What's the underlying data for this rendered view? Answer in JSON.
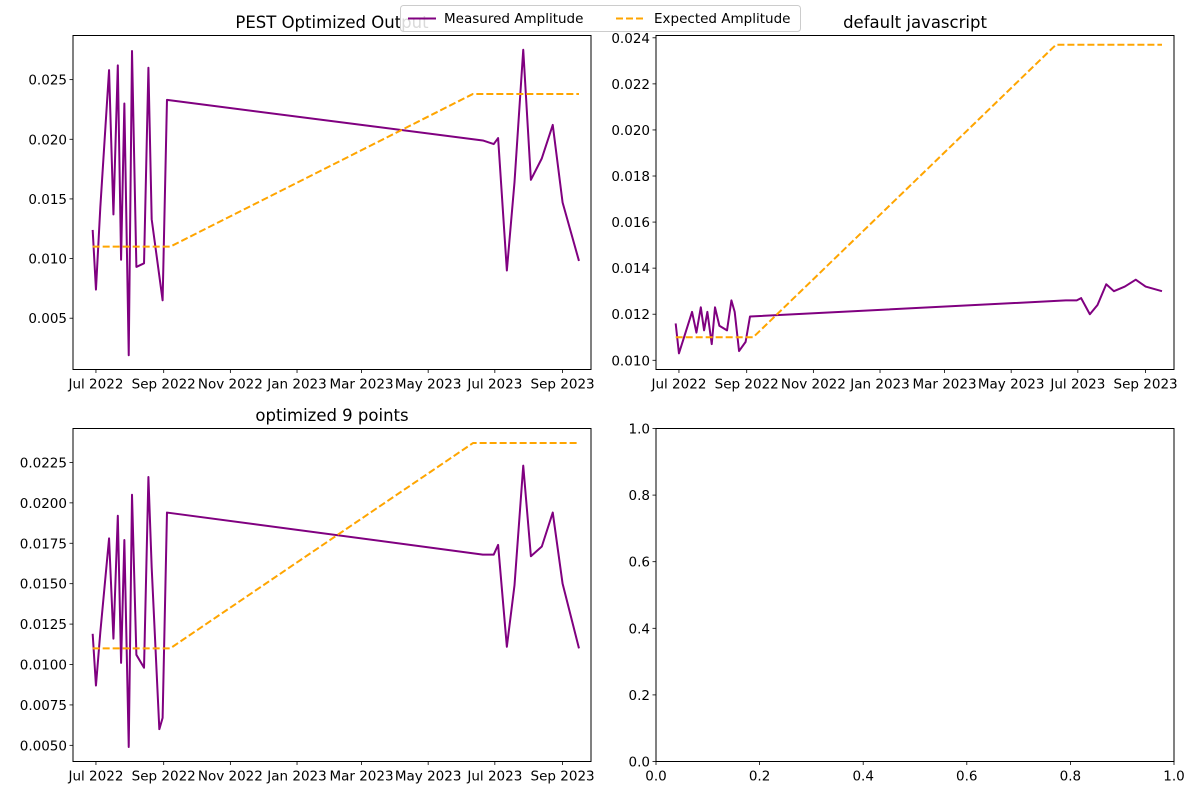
{
  "legend": {
    "entries": [
      {
        "label": "Measured Amplitude",
        "color": "#800080",
        "style": "solid"
      },
      {
        "label": "Expected Amplitude",
        "color": "#FFA500",
        "style": "dashed"
      }
    ],
    "placement": "top-center"
  },
  "x_tick_labels": [
    "Jul 2022",
    "Sep 2022",
    "Nov 2022",
    "Jan 2023",
    "Mar 2023",
    "May 2023",
    "Jul 2023",
    "Sep 2023"
  ],
  "chart_data": [
    {
      "type": "line",
      "title": "PEST Optimized Output",
      "xlabel": "",
      "ylabel": "",
      "x_axis": "date",
      "xlim": [
        "2022-06-10",
        "2023-09-27"
      ],
      "ylim": [
        0.0007,
        0.0287
      ],
      "yticks": [
        0.005,
        0.01,
        0.015,
        0.02,
        0.025
      ],
      "ytick_labels": [
        "0.005",
        "0.010",
        "0.015",
        "0.020",
        "0.025"
      ],
      "grid": false,
      "series": [
        {
          "name": "Measured Amplitude",
          "color": "#800080",
          "style": "solid",
          "points": [
            [
              "2022-06-28",
              0.0124
            ],
            [
              "2022-07-01",
              0.0074
            ],
            [
              "2022-07-05",
              0.0143
            ],
            [
              "2022-07-13",
              0.0258
            ],
            [
              "2022-07-17",
              0.0137
            ],
            [
              "2022-07-21",
              0.0262
            ],
            [
              "2022-07-24",
              0.0099
            ],
            [
              "2022-07-27",
              0.023
            ],
            [
              "2022-07-31",
              0.0019
            ],
            [
              "2022-08-03",
              0.0274
            ],
            [
              "2022-08-07",
              0.0093
            ],
            [
              "2022-08-14",
              0.0096
            ],
            [
              "2022-08-18",
              0.026
            ],
            [
              "2022-08-21",
              0.0133
            ],
            [
              "2022-08-31",
              0.0065
            ],
            [
              "2022-09-04",
              0.0233
            ],
            [
              "2023-06-20",
              0.0199
            ],
            [
              "2023-06-30",
              0.0196
            ],
            [
              "2023-07-04",
              0.0201
            ],
            [
              "2023-07-12",
              0.009
            ],
            [
              "2023-07-19",
              0.0164
            ],
            [
              "2023-07-27",
              0.0275
            ],
            [
              "2023-08-03",
              0.0166
            ],
            [
              "2023-08-13",
              0.0184
            ],
            [
              "2023-08-23",
              0.0212
            ],
            [
              "2023-09-01",
              0.0147
            ],
            [
              "2023-09-16",
              0.0098
            ]
          ]
        },
        {
          "name": "Expected Amplitude",
          "color": "#FFA500",
          "style": "dashed",
          "points": [
            [
              "2022-06-28",
              0.011
            ],
            [
              "2022-09-07",
              0.011
            ],
            [
              "2023-06-11",
              0.0238
            ],
            [
              "2023-09-16",
              0.0238
            ]
          ]
        }
      ]
    },
    {
      "type": "line",
      "title": "default javascript",
      "xlabel": "",
      "ylabel": "",
      "x_axis": "date",
      "xlim": [
        "2022-06-10",
        "2023-09-27"
      ],
      "ylim": [
        0.0096,
        0.0241
      ],
      "yticks": [
        0.01,
        0.012,
        0.014,
        0.016,
        0.018,
        0.02,
        0.022,
        0.024
      ],
      "ytick_labels": [
        "0.010",
        "0.012",
        "0.014",
        "0.016",
        "0.018",
        "0.020",
        "0.022",
        "0.024"
      ],
      "grid": false,
      "series": [
        {
          "name": "Measured Amplitude",
          "color": "#800080",
          "style": "solid",
          "points": [
            [
              "2022-06-28",
              0.0116
            ],
            [
              "2022-07-01",
              0.0103
            ],
            [
              "2022-07-05",
              0.0109
            ],
            [
              "2022-07-13",
              0.0121
            ],
            [
              "2022-07-17",
              0.0112
            ],
            [
              "2022-07-21",
              0.0123
            ],
            [
              "2022-07-24",
              0.0113
            ],
            [
              "2022-07-27",
              0.0121
            ],
            [
              "2022-07-31",
              0.0107
            ],
            [
              "2022-08-03",
              0.0123
            ],
            [
              "2022-08-07",
              0.0115
            ],
            [
              "2022-08-14",
              0.0113
            ],
            [
              "2022-08-18",
              0.0126
            ],
            [
              "2022-08-21",
              0.0121
            ],
            [
              "2022-08-25",
              0.0104
            ],
            [
              "2022-08-31",
              0.0108
            ],
            [
              "2022-09-04",
              0.0119
            ],
            [
              "2023-06-20",
              0.0126
            ],
            [
              "2023-06-30",
              0.0126
            ],
            [
              "2023-07-04",
              0.0127
            ],
            [
              "2023-07-12",
              0.012
            ],
            [
              "2023-07-19",
              0.0124
            ],
            [
              "2023-07-27",
              0.0133
            ],
            [
              "2023-08-03",
              0.013
            ],
            [
              "2023-08-13",
              0.0132
            ],
            [
              "2023-08-23",
              0.0135
            ],
            [
              "2023-09-01",
              0.0132
            ],
            [
              "2023-09-16",
              0.013
            ]
          ]
        },
        {
          "name": "Expected Amplitude",
          "color": "#FFA500",
          "style": "dashed",
          "points": [
            [
              "2022-06-28",
              0.011
            ],
            [
              "2022-09-07",
              0.011
            ],
            [
              "2023-06-11",
              0.0237
            ],
            [
              "2023-09-16",
              0.0237
            ]
          ]
        }
      ]
    },
    {
      "type": "line",
      "title": "optimized 9 points",
      "xlabel": "",
      "ylabel": "",
      "x_axis": "date",
      "xlim": [
        "2022-06-10",
        "2023-09-27"
      ],
      "ylim": [
        0.004,
        0.0246
      ],
      "yticks": [
        0.005,
        0.0075,
        0.01,
        0.0125,
        0.015,
        0.0175,
        0.02,
        0.0225
      ],
      "ytick_labels": [
        "0.0050",
        "0.0075",
        "0.0100",
        "0.0125",
        "0.0150",
        "0.0175",
        "0.0200",
        "0.0225"
      ],
      "grid": false,
      "series": [
        {
          "name": "Measured Amplitude",
          "color": "#800080",
          "style": "solid",
          "points": [
            [
              "2022-06-28",
              0.0119
            ],
            [
              "2022-07-01",
              0.0087
            ],
            [
              "2022-07-05",
              0.012
            ],
            [
              "2022-07-13",
              0.0178
            ],
            [
              "2022-07-17",
              0.0116
            ],
            [
              "2022-07-21",
              0.0192
            ],
            [
              "2022-07-24",
              0.0101
            ],
            [
              "2022-07-27",
              0.0177
            ],
            [
              "2022-07-31",
              0.0049
            ],
            [
              "2022-08-03",
              0.0205
            ],
            [
              "2022-08-07",
              0.0106
            ],
            [
              "2022-08-14",
              0.0098
            ],
            [
              "2022-08-18",
              0.0216
            ],
            [
              "2022-08-21",
              0.016
            ],
            [
              "2022-08-28",
              0.006
            ],
            [
              "2022-08-31",
              0.0067
            ],
            [
              "2022-09-04",
              0.0194
            ],
            [
              "2023-06-20",
              0.0168
            ],
            [
              "2023-06-30",
              0.0168
            ],
            [
              "2023-07-04",
              0.0174
            ],
            [
              "2023-07-12",
              0.0111
            ],
            [
              "2023-07-19",
              0.0149
            ],
            [
              "2023-07-27",
              0.0223
            ],
            [
              "2023-08-03",
              0.0167
            ],
            [
              "2023-08-13",
              0.0173
            ],
            [
              "2023-08-23",
              0.0194
            ],
            [
              "2023-09-01",
              0.015
            ],
            [
              "2023-09-16",
              0.011
            ]
          ]
        },
        {
          "name": "Expected Amplitude",
          "color": "#FFA500",
          "style": "dashed",
          "points": [
            [
              "2022-06-28",
              0.011
            ],
            [
              "2022-09-07",
              0.011
            ],
            [
              "2023-06-11",
              0.0237
            ],
            [
              "2023-09-16",
              0.0237
            ]
          ]
        }
      ]
    },
    {
      "type": "line",
      "title": "",
      "xlabel": "",
      "ylabel": "",
      "x_axis": "numeric",
      "xlim": [
        0,
        1
      ],
      "ylim": [
        0,
        1
      ],
      "xticks": [
        0,
        0.2,
        0.4,
        0.6,
        0.8,
        1.0
      ],
      "xtick_labels": [
        "0.0",
        "0.2",
        "0.4",
        "0.6",
        "0.8",
        "1.0"
      ],
      "yticks": [
        0,
        0.2,
        0.4,
        0.6,
        0.8,
        1.0
      ],
      "ytick_labels": [
        "0.0",
        "0.2",
        "0.4",
        "0.6",
        "0.8",
        "1.0"
      ],
      "grid": false,
      "series": []
    }
  ]
}
